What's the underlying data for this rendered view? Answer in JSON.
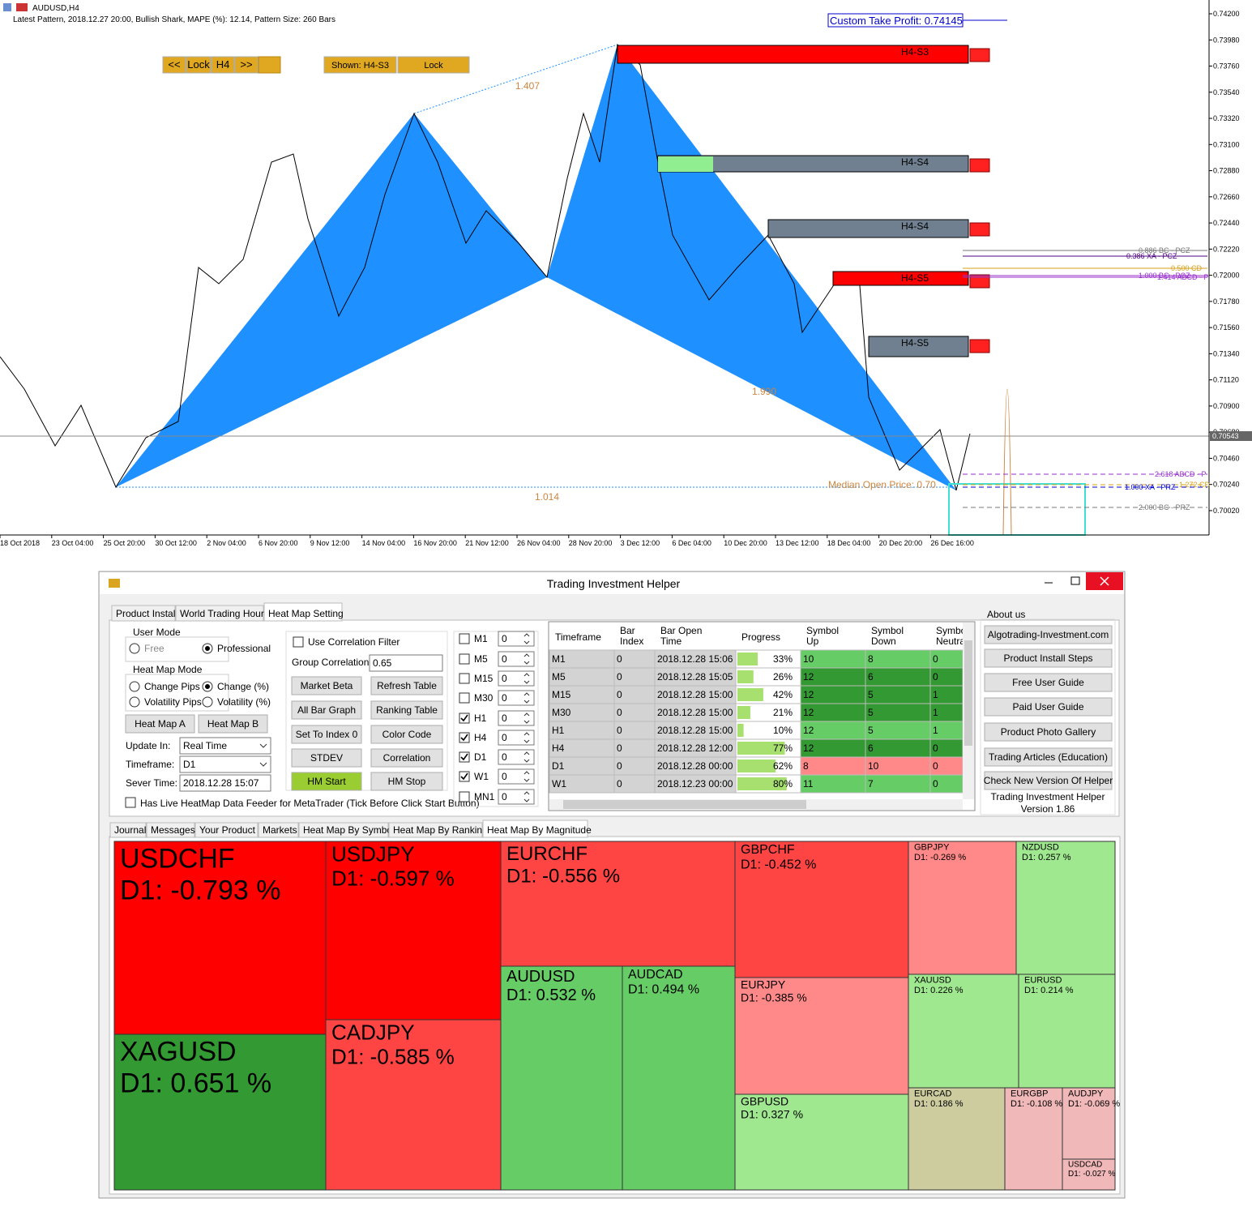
{
  "chart_window": {
    "symbol": "AUDUSD,H4",
    "info": "Latest Pattern, 2018.12.27 20:00, Bullish Shark, MAPE (%): 12.14, Pattern Size: 260 Bars",
    "nav_buttons": [
      "<<",
      "Lock",
      "H4",
      ">>"
    ],
    "shown": "Shown: H4-S3",
    "lock": "Lock",
    "custom_take_profit": "Custom Take Profit: 0.74145",
    "ratios": [
      "1.407",
      "1.990",
      "1.014"
    ],
    "zones": [
      "H4-S3",
      "H4-S4",
      "H4-S4",
      "H4-S5",
      "H4-S5"
    ],
    "median": "Median Open Price: 0.70",
    "levels": [
      "0.886 BC - PCZ",
      "0.386 XA - PCZ",
      "0.500 CD",
      "1.000 BC - PCZ",
      "1.414 ABCD - P",
      "2.618 ABCD - P",
      "1.272 CD",
      "1.000 XA - PRZ",
      "2.000 BC - PRZ"
    ],
    "price_ticks": [
      "0.74200",
      "0.73980",
      "0.73760",
      "0.73540",
      "0.73320",
      "0.73100",
      "0.72880",
      "0.72660",
      "0.72440",
      "0.72220",
      "0.72000",
      "0.71780",
      "0.71560",
      "0.71340",
      "0.71120",
      "0.70900",
      "0.70680",
      "0.70460",
      "0.70240",
      "0.70020"
    ],
    "current_price": "0.70543",
    "time_ticks": [
      "18 Oct 2018",
      "23 Oct 04:00",
      "25 Oct 20:00",
      "30 Oct 12:00",
      "2 Nov 04:00",
      "6 Nov 20:00",
      "9 Nov 12:00",
      "14 Nov 04:00",
      "16 Nov 20:00",
      "21 Nov 12:00",
      "26 Nov 04:00",
      "28 Nov 20:00",
      "3 Dec 12:00",
      "6 Dec 04:00",
      "10 Dec 20:00",
      "13 Dec 12:00",
      "18 Dec 04:00",
      "20 Dec 20:00",
      "26 Dec 16:00"
    ]
  },
  "helper": {
    "title": "Trading Investment Helper",
    "tabs": [
      "Product Install",
      "World Trading Hours",
      "Heat Map Setting"
    ],
    "user_mode": {
      "label": "User Mode",
      "options": [
        {
          "text": "Free",
          "checked": false
        },
        {
          "text": "Professional",
          "checked": true
        }
      ]
    },
    "heat_map_mode": {
      "label": "Heat Map Mode",
      "options": [
        {
          "text": "Change Pips",
          "checked": false
        },
        {
          "text": "Change (%)",
          "checked": true
        },
        {
          "text": "Volatility Pips",
          "checked": false
        },
        {
          "text": "Volatility (%)",
          "checked": false
        }
      ]
    },
    "map_buttons": [
      "Heat Map A",
      "Heat Map B"
    ],
    "fields": [
      {
        "label": "Update In:",
        "value": "Real Time"
      },
      {
        "label": "Timeframe:",
        "value": "D1"
      },
      {
        "label": "Sever Time:",
        "value": "2018.12.28 15:07"
      }
    ],
    "live_feeder": "Has Live HeatMap Data Feeder for MetaTrader (Tick Before Click Start Button)",
    "correlation_filter": "Use Correlation Filter",
    "group_correlation": {
      "label": "Group Correlation:",
      "value": "0.65"
    },
    "buttons": [
      "Market Beta",
      "Refresh Table",
      "All Bar Graph",
      "Ranking Table",
      "Set To Index 0",
      "Color Code",
      "STDEV",
      "Correlation",
      "HM Start",
      "HM Stop"
    ],
    "timeframes": [
      {
        "name": "M1",
        "checked": false,
        "value": "0"
      },
      {
        "name": "M5",
        "checked": false,
        "value": "0"
      },
      {
        "name": "M15",
        "checked": false,
        "value": "0"
      },
      {
        "name": "M30",
        "checked": false,
        "value": "0"
      },
      {
        "name": "H1",
        "checked": true,
        "value": "0"
      },
      {
        "name": "H4",
        "checked": true,
        "value": "0"
      },
      {
        "name": "D1",
        "checked": true,
        "value": "0"
      },
      {
        "name": "W1",
        "checked": true,
        "value": "0"
      },
      {
        "name": "MN1",
        "checked": false,
        "value": "0"
      }
    ],
    "table": {
      "headers": [
        [
          "Timeframe"
        ],
        [
          "Bar",
          "Index"
        ],
        [
          "Bar Open",
          "Time"
        ],
        [
          "Progress"
        ],
        [
          "Symbol",
          "Up"
        ],
        [
          "Symbol",
          "Down"
        ],
        [
          "Symbo",
          "Neutra"
        ]
      ],
      "rows": [
        [
          "M1",
          "0",
          "2018.12.28 15:06",
          {
            "value": 33,
            "label": "33%"
          },
          "10",
          "8",
          "0"
        ],
        [
          "M5",
          "0",
          "2018.12.28 15:05",
          {
            "value": 26,
            "label": "26%"
          },
          "12",
          "6",
          "0"
        ],
        [
          "M15",
          "0",
          "2018.12.28 15:00",
          {
            "value": 42,
            "label": "42%"
          },
          "12",
          "5",
          "1"
        ],
        [
          "M30",
          "0",
          "2018.12.28 15:00",
          {
            "value": 21,
            "label": "21%"
          },
          "12",
          "5",
          "1"
        ],
        [
          "H1",
          "0",
          "2018.12.28 15:00",
          {
            "value": 10,
            "label": "10%"
          },
          "12",
          "5",
          "1"
        ],
        [
          "H4",
          "0",
          "2018.12.28 12:00",
          {
            "value": 77,
            "label": "77%"
          },
          "12",
          "6",
          "0"
        ],
        [
          "D1",
          "0",
          "2018.12.28 00:00",
          {
            "value": 62,
            "label": "62%"
          },
          "8",
          "10",
          "0"
        ],
        [
          "W1",
          "0",
          "2018.12.23 00:00",
          {
            "value": 80,
            "label": "80%"
          },
          "11",
          "7",
          "0"
        ]
      ]
    },
    "about": {
      "label": "About us",
      "buttons": [
        "Algotrading-Investment.com",
        "Product Install Steps",
        "Free User Guide",
        "Paid User Guide",
        "Product Photo Gallery",
        "Trading Articles (Education)",
        "Check New Version Of Helper"
      ],
      "product": "Trading Investment Helper",
      "version": "Version 1.86"
    },
    "bottom_tabs": [
      "Journal",
      "Messages",
      "Your Product",
      "Markets",
      "Heat Map By Symbol",
      "Heat Map By Ranking",
      "Heat Map By Magnitude"
    ],
    "heat_map": [
      {
        "symbol": "USDCHF",
        "label": "D1: -0.793 %",
        "color": "#ff0000"
      },
      {
        "symbol": "USDJPY",
        "label": "D1: -0.597 %",
        "color": "#ff0000"
      },
      {
        "symbol": "EURCHF",
        "label": "D1: -0.556 %",
        "color": "#ff4444"
      },
      {
        "symbol": "GBPCHF",
        "label": "D1: -0.452 %",
        "color": "#ff4444"
      },
      {
        "symbol": "GBPJPY",
        "label": "D1: -0.269 %",
        "color": "#ff8888"
      },
      {
        "symbol": "NZDUSD",
        "label": "D1: 0.257 %",
        "color": "#a0e890"
      },
      {
        "symbol": "XAGUSD",
        "label": "D1: 0.651 %",
        "color": "#339933"
      },
      {
        "symbol": "CADJPY",
        "label": "D1: -0.585 %",
        "color": "#ff4444"
      },
      {
        "symbol": "AUDUSD",
        "label": "D1: 0.532 %",
        "color": "#66cc66"
      },
      {
        "symbol": "AUDCAD",
        "label": "D1: 0.494 %",
        "color": "#66cc66"
      },
      {
        "symbol": "EURJPY",
        "label": "D1: -0.385 %",
        "color": "#ff8888"
      },
      {
        "symbol": "GBPUSD",
        "label": "D1: 0.327 %",
        "color": "#a0e890"
      },
      {
        "symbol": "XAUUSD",
        "label": "D1: 0.226 %",
        "color": "#a0e890"
      },
      {
        "symbol": "EURUSD",
        "label": "D1: 0.214 %",
        "color": "#a0e890"
      },
      {
        "symbol": "EURCAD",
        "label": "D1: 0.186 %",
        "color": "#cccc9f"
      },
      {
        "symbol": "EURGBP",
        "label": "D1: -0.108 %",
        "color": "#f0b8b8"
      },
      {
        "symbol": "AUDJPY",
        "label": "D1: -0.069 %",
        "color": "#f0b8b8"
      },
      {
        "symbol": "USDCAD",
        "label": "D1: -0.027 %",
        "color": "#f0b8b8"
      }
    ]
  }
}
